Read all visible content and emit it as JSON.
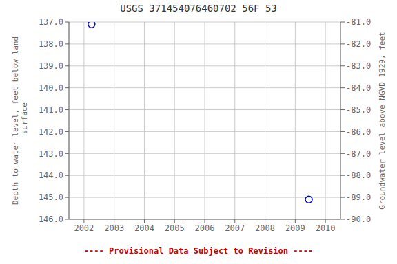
{
  "chart_data": {
    "type": "scatter",
    "title": "USGS 371454076460702 56F 53",
    "x": [
      2002.25,
      2009.45
    ],
    "values": [
      137.1,
      145.1
    ],
    "color": "#0000cc",
    "marker": "circle",
    "xlim": [
      2001.5,
      2010.5
    ],
    "xticks": [
      2002,
      2003,
      2004,
      2005,
      2006,
      2007,
      2008,
      2009,
      2010
    ],
    "ylim": [
      146.0,
      137.0
    ],
    "yticks": [
      {
        "value": 137.0,
        "label": "137.0"
      },
      {
        "value": 138.0,
        "label": "138.0"
      },
      {
        "value": 139.0,
        "label": "139.0"
      },
      {
        "value": 140.0,
        "label": "140.0"
      },
      {
        "value": 141.0,
        "label": "141.0"
      },
      {
        "value": 142.0,
        "label": "142.0"
      },
      {
        "value": 143.0,
        "label": "143.0"
      },
      {
        "value": 144.0,
        "label": "144.0"
      },
      {
        "value": 145.0,
        "label": "145.0"
      },
      {
        "value": 146.0,
        "label": "146.0"
      }
    ],
    "y2lim": [
      -90.0,
      -81.0
    ],
    "y2ticks": [
      {
        "value": -81.0,
        "label": "-81.0"
      },
      {
        "value": -82.0,
        "label": "-82.0"
      },
      {
        "value": -83.0,
        "label": "-83.0"
      },
      {
        "value": -84.0,
        "label": "-84.0"
      },
      {
        "value": -85.0,
        "label": "-85.0"
      },
      {
        "value": -86.0,
        "label": "-86.0"
      },
      {
        "value": -87.0,
        "label": "-87.0"
      },
      {
        "value": -88.0,
        "label": "-88.0"
      },
      {
        "value": -89.0,
        "label": "-89.0"
      },
      {
        "value": -90.0,
        "label": "-90.0"
      }
    ],
    "ylabel": "Depth to water level, feet below land\n surface",
    "y2label": "Groundwater level above NGVD 1929, feet",
    "grid": true,
    "annotations": [
      {
        "text": "---- Provisional Data Subject to Revision ----",
        "color": "#cc0000"
      }
    ]
  }
}
